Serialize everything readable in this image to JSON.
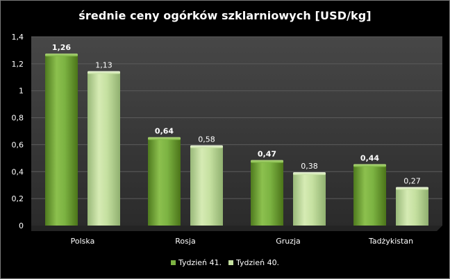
{
  "chart_data": {
    "type": "bar",
    "title": "średnie ceny ogórków szklarniowych [USD/kg]",
    "categories": [
      "Polska",
      "Rosja",
      "Gruzja",
      "Tadżykistan"
    ],
    "series": [
      {
        "name": "Tydzień 41.",
        "values": [
          1.26,
          0.64,
          0.47,
          0.44
        ],
        "labels": [
          "1,26",
          "0,64",
          "0,47",
          "0,44"
        ],
        "color": "#7cb342",
        "label_bold": true
      },
      {
        "name": "Tydzień 40.",
        "values": [
          1.13,
          0.58,
          0.38,
          0.27
        ],
        "labels": [
          "1,13",
          "0,58",
          "0,38",
          "0,27"
        ],
        "color": "#c5e0a0",
        "label_bold": false
      }
    ],
    "ylim": [
      0,
      1.4
    ],
    "yticks": [
      0,
      0.2,
      0.4,
      0.6,
      0.8,
      1,
      1.2,
      1.4
    ],
    "ytick_labels": [
      "0",
      "0,2",
      "0,4",
      "0,6",
      "0,8",
      "1",
      "1,2",
      "1,4"
    ],
    "plot_background": "#3a3a3a",
    "grid": true,
    "legend_position": "bottom"
  }
}
